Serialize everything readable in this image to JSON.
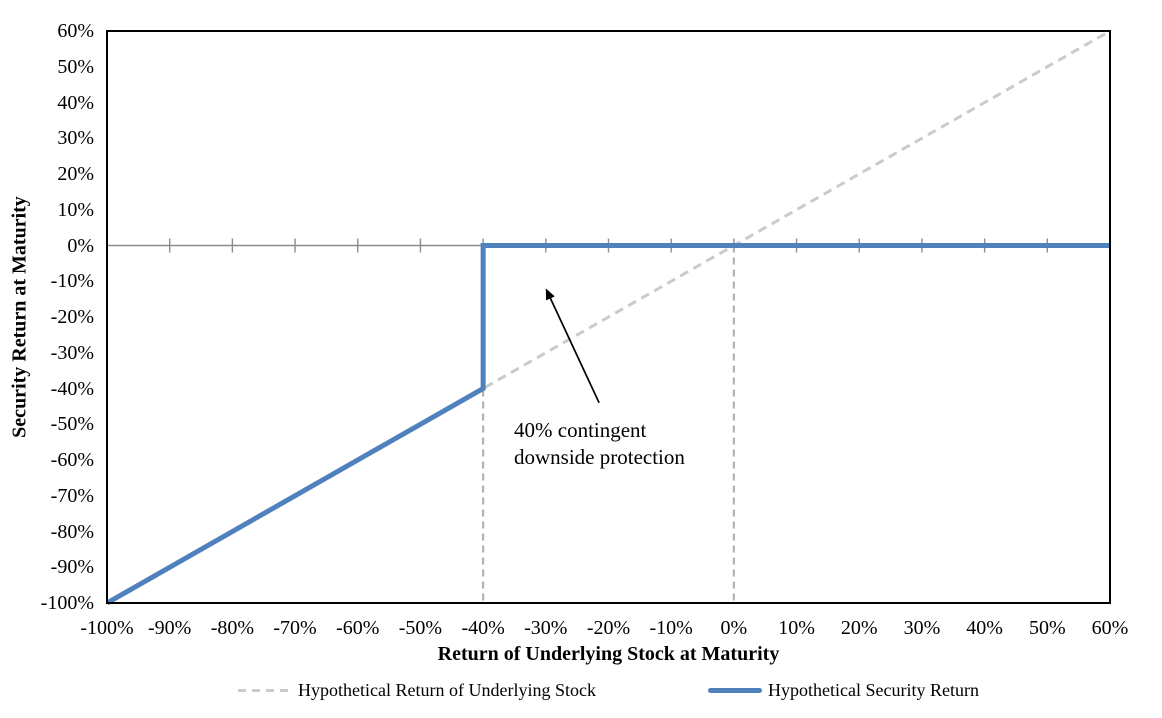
{
  "chart_data": {
    "type": "line",
    "title": "",
    "xlabel": "Return of Underlying Stock at Maturity",
    "ylabel": "Security Return at Maturity",
    "xlim": [
      -100,
      60
    ],
    "ylim": [
      -100,
      60
    ],
    "tick_step": 10,
    "grid": "off",
    "legend_position": "bottom-center",
    "x_tick_labels": [
      "-100%",
      "-90%",
      "-80%",
      "-70%",
      "-60%",
      "-50%",
      "-40%",
      "-30%",
      "-20%",
      "-10%",
      "0%",
      "10%",
      "20%",
      "30%",
      "40%",
      "50%",
      "60%"
    ],
    "y_tick_labels": [
      "60%",
      "50%",
      "40%",
      "30%",
      "20%",
      "10%",
      "0%",
      "-10%",
      "-20%",
      "-30%",
      "-40%",
      "-50%",
      "-60%",
      "-70%",
      "-80%",
      "-90%",
      "-100%"
    ],
    "series": [
      {
        "name": "Hypothetical Return of Underlying Stock",
        "style": "dashed",
        "color": "#cbcbcb",
        "width": 3,
        "points": [
          [
            -100,
            -100
          ],
          [
            60,
            60
          ]
        ]
      },
      {
        "name": "Hypothetical Security Return",
        "style": "solid",
        "color": "#4f81bd",
        "width": 5,
        "points": [
          [
            -100,
            -100
          ],
          [
            -40,
            -40
          ],
          [
            -40,
            0
          ],
          [
            60,
            0
          ]
        ]
      }
    ],
    "reference_lines": [
      {
        "x": -40,
        "y_from": 0,
        "y_to": -100,
        "style": "dashed",
        "color": "#b3b3b3"
      },
      {
        "x": 0,
        "y_from": 0,
        "y_to": -100,
        "style": "dashed",
        "color": "#b3b3b3"
      }
    ],
    "zero_axis": {
      "y": 0,
      "color": "#8c8c8c"
    },
    "annotation": {
      "line1": "40% contingent",
      "line2": "downside protection",
      "arrow_tail": [
        -21.5,
        -44
      ],
      "arrow_head": [
        -30,
        -12
      ],
      "color": "#000000"
    }
  },
  "colors": {
    "plot_border": "#000000",
    "background": "#ffffff",
    "text": "#000000",
    "accent_blue": "#4f81bd",
    "dashed_gray": "#cbcbcb"
  }
}
